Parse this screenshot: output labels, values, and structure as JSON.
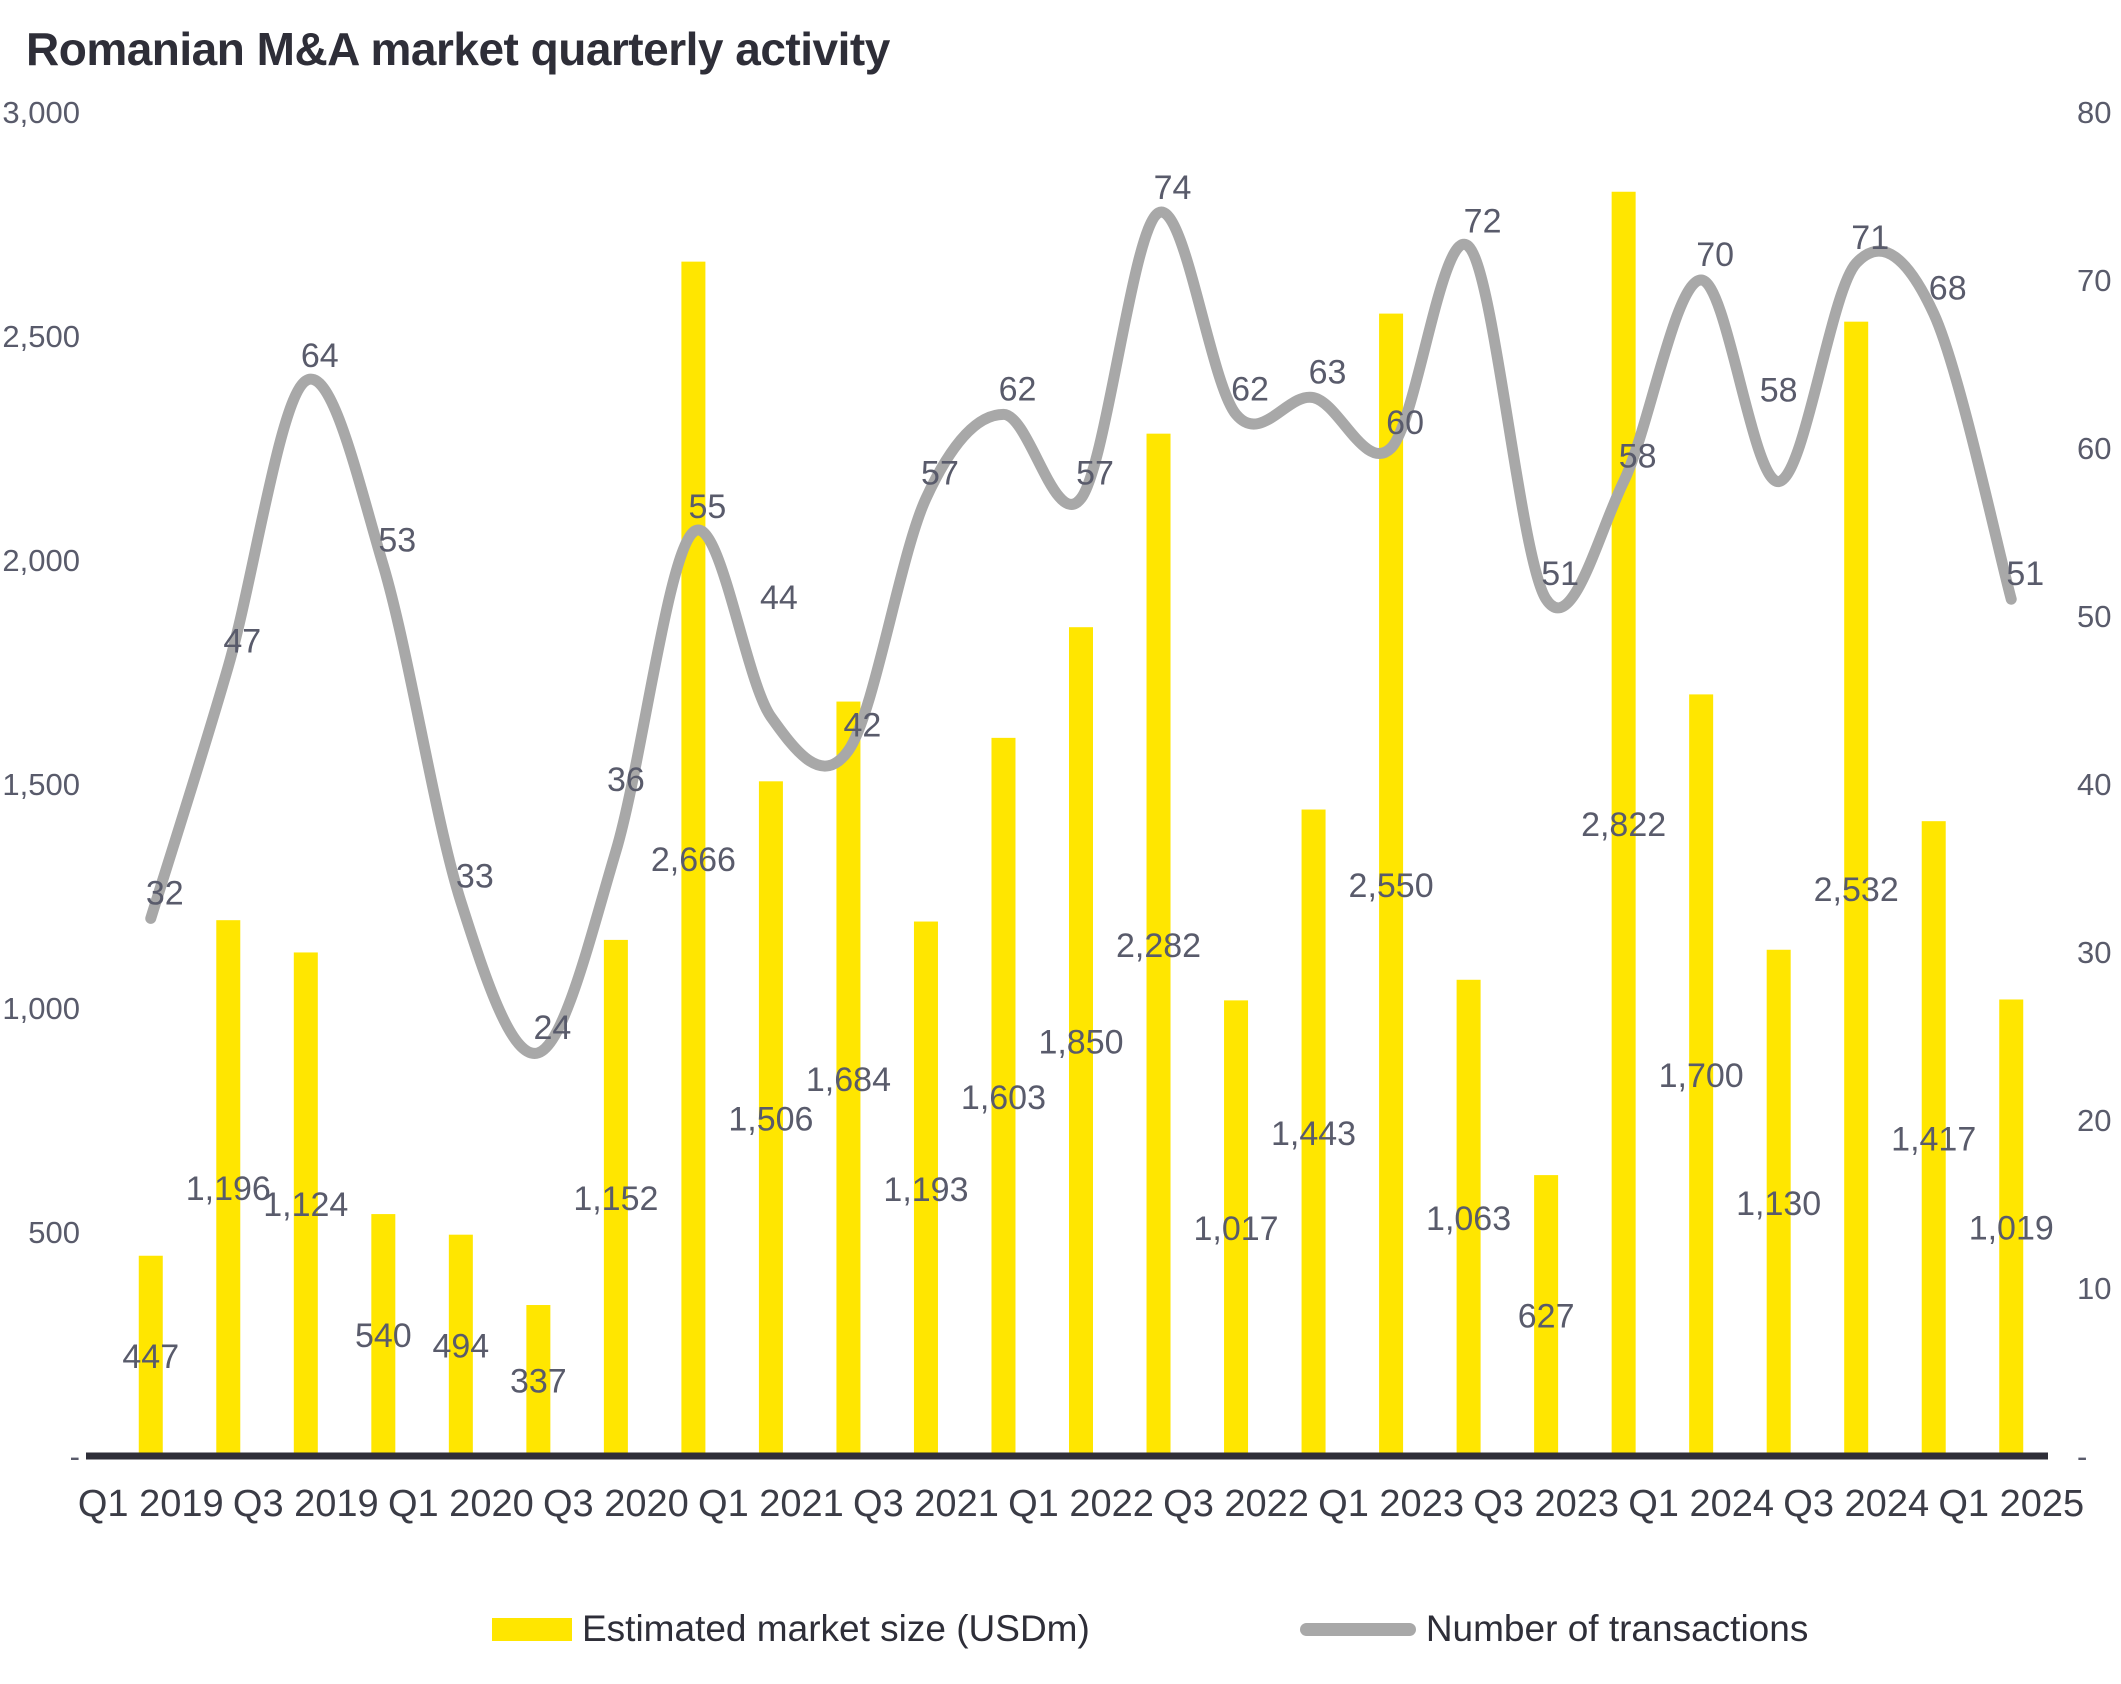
{
  "title": "Romanian M&A market quarterly activity",
  "colors": {
    "bar": "#FFE600",
    "line": "#A8A8A8",
    "data_label": "#595B6B",
    "axis_label": "#595B6B",
    "x_label": "#3B3C46",
    "axis_line": "#2E2E38",
    "title": "#2E2E38",
    "background": "#FFFFFF"
  },
  "legend": {
    "items": [
      {
        "label": "Estimated market size (USDm)",
        "swatch": "bar"
      },
      {
        "label": "Number of transactions",
        "swatch": "line"
      }
    ]
  },
  "chart_data": {
    "type": "combo",
    "title": "Romanian M&A market quarterly activity",
    "grid": false,
    "legend_position": "bottom",
    "categories": [
      "Q1 2019",
      "Q2 2019",
      "Q3 2019",
      "Q4 2019",
      "Q1 2020",
      "Q2 2020",
      "Q3 2020",
      "Q4 2020",
      "Q1 2021",
      "Q2 2021",
      "Q3 2021",
      "Q4 2021",
      "Q1 2022",
      "Q2 2022",
      "Q3 2022",
      "Q4 2022",
      "Q1 2023",
      "Q2 2023",
      "Q3 2023",
      "Q4 2023",
      "Q1 2024",
      "Q2 2024",
      "Q3 2024",
      "Q4 2024",
      "Q1 2025"
    ],
    "x_tick_labels": [
      "Q1 2019",
      "Q3 2019",
      "Q1 2020",
      "Q3 2020",
      "Q1 2021",
      "Q3 2021",
      "Q1 2022",
      "Q3 2022",
      "Q1 2023",
      "Q3 2023",
      "Q1 2024",
      "Q3 2024",
      "Q1 2025"
    ],
    "series": [
      {
        "name": "Estimated market size (USDm)",
        "type": "bar",
        "axis": "left",
        "values": [
          447,
          1196,
          1124,
          540,
          494,
          337,
          1152,
          2666,
          1506,
          1684,
          1193,
          1603,
          1850,
          2282,
          1017,
          1443,
          2550,
          1063,
          627,
          2822,
          1700,
          1130,
          2532,
          1417,
          1019
        ],
        "labels": [
          "447",
          "1,196",
          "1,124",
          "540",
          "494",
          "337",
          "1,152",
          "2,666",
          "1,506",
          "1,684",
          "1,193",
          "1,603",
          "1,850",
          "2,282",
          "1,017",
          "1,443",
          "2,550",
          "1,063",
          "627",
          "2,822",
          "1,700",
          "1,130",
          "2,532",
          "1,417",
          "1,019"
        ]
      },
      {
        "name": "Number of transactions",
        "type": "line",
        "axis": "right",
        "values": [
          32,
          47,
          64,
          53,
          33,
          24,
          36,
          55,
          44,
          42,
          57,
          62,
          57,
          74,
          62,
          63,
          60,
          72,
          51,
          58,
          70,
          58,
          71,
          68,
          51
        ],
        "labels": [
          "32",
          "47",
          "64",
          "53",
          "33",
          "24",
          "36",
          "55",
          "44",
          "42",
          "57",
          "62",
          "57",
          "74",
          "62",
          "63",
          "60",
          "72",
          "51",
          "58",
          "70",
          "58",
          "71",
          "68",
          "51"
        ]
      }
    ],
    "left_axis": {
      "min": 0,
      "max": 3000,
      "step": 500,
      "tick_labels": [
        "3,000",
        "2,500",
        "2,000",
        "1,500",
        "1,000",
        "500",
        "-"
      ]
    },
    "right_axis": {
      "min": 0,
      "max": 80,
      "step": 10,
      "tick_labels": [
        "80",
        "70",
        "60",
        "50",
        "40",
        "30",
        "20",
        "10",
        "-"
      ]
    }
  }
}
